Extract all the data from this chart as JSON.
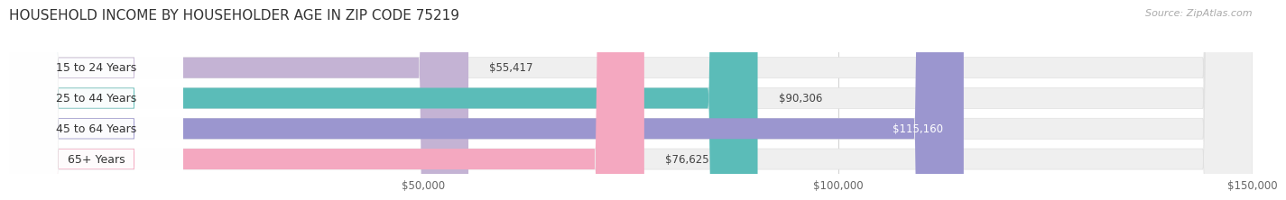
{
  "title": "HOUSEHOLD INCOME BY HOUSEHOLDER AGE IN ZIP CODE 75219",
  "source": "Source: ZipAtlas.com",
  "categories": [
    "15 to 24 Years",
    "25 to 44 Years",
    "45 to 64 Years",
    "65+ Years"
  ],
  "values": [
    55417,
    90306,
    115160,
    76625
  ],
  "bar_colors": [
    "#c4b3d4",
    "#5bbcb8",
    "#9b96cf",
    "#f4a8c0"
  ],
  "label_colors": [
    "#333333",
    "#333333",
    "#ffffff",
    "#333333"
  ],
  "xlim": [
    0,
    150000
  ],
  "xtick_vals": [
    50000,
    100000,
    150000
  ],
  "xtick_labels": [
    "$50,000",
    "$100,000",
    "$150,000"
  ],
  "background_color": "#ffffff",
  "bar_bg_color": "#efefef",
  "title_fontsize": 11,
  "source_fontsize": 8,
  "tick_fontsize": 8.5,
  "value_fontsize": 8.5,
  "label_fontsize": 9,
  "bar_height": 0.68
}
